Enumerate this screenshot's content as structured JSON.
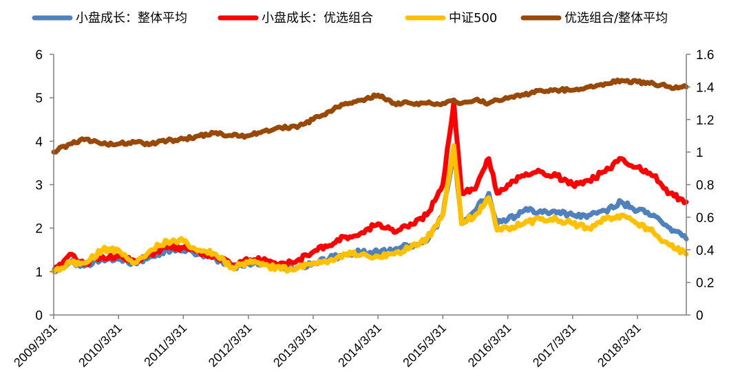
{
  "chart_data": {
    "type": "line",
    "title": "",
    "legend_position": "top",
    "grid": false,
    "y_left": {
      "min": 0,
      "max": 6,
      "ticks": [
        "0",
        "1",
        "2",
        "3",
        "4",
        "5",
        "6"
      ]
    },
    "y_right": {
      "min": 0,
      "max": 1.6,
      "ticks": [
        "0",
        "0.2",
        "0.4",
        "0.6",
        "0.8",
        "1",
        "1.2",
        "1.4",
        "1.6"
      ]
    },
    "x_range": [
      "2009-03-31",
      "2018-12-31"
    ],
    "x_ticks": [
      "2009/3/31",
      "2010/3/31",
      "2011/3/31",
      "2012/3/31",
      "2013/3/31",
      "2014/3/31",
      "2015/3/31",
      "2016/3/31",
      "2017/3/31",
      "2018/3/31"
    ],
    "series": [
      {
        "name": "小盘成长：整体平均",
        "axis": "left",
        "color": "#4f81bd",
        "points": [
          [
            "2009-03-31",
            1.0
          ],
          [
            "2009-06-30",
            1.2
          ],
          [
            "2009-09-30",
            1.15
          ],
          [
            "2009-12-31",
            1.3
          ],
          [
            "2010-03-31",
            1.28
          ],
          [
            "2010-06-30",
            1.2
          ],
          [
            "2010-09-30",
            1.35
          ],
          [
            "2010-12-31",
            1.5
          ],
          [
            "2011-03-31",
            1.48
          ],
          [
            "2011-06-30",
            1.4
          ],
          [
            "2011-09-30",
            1.3
          ],
          [
            "2011-12-31",
            1.1
          ],
          [
            "2012-03-31",
            1.18
          ],
          [
            "2012-06-30",
            1.2
          ],
          [
            "2012-09-30",
            1.1
          ],
          [
            "2012-12-31",
            1.08
          ],
          [
            "2013-03-31",
            1.2
          ],
          [
            "2013-06-30",
            1.3
          ],
          [
            "2013-09-30",
            1.4
          ],
          [
            "2013-12-31",
            1.45
          ],
          [
            "2014-03-31",
            1.45
          ],
          [
            "2014-06-30",
            1.5
          ],
          [
            "2014-09-30",
            1.6
          ],
          [
            "2014-12-31",
            1.7
          ],
          [
            "2015-03-31",
            2.3
          ],
          [
            "2015-06-01",
            3.8
          ],
          [
            "2015-07-15",
            2.1
          ],
          [
            "2015-09-30",
            2.4
          ],
          [
            "2015-12-15",
            2.8
          ],
          [
            "2016-01-31",
            2.1
          ],
          [
            "2016-03-31",
            2.2
          ],
          [
            "2016-06-30",
            2.4
          ],
          [
            "2016-09-30",
            2.4
          ],
          [
            "2016-12-31",
            2.35
          ],
          [
            "2017-03-31",
            2.3
          ],
          [
            "2017-06-30",
            2.3
          ],
          [
            "2017-09-30",
            2.4
          ],
          [
            "2017-12-31",
            2.6
          ],
          [
            "2018-03-31",
            2.4
          ],
          [
            "2018-06-30",
            2.3
          ],
          [
            "2018-09-30",
            2.0
          ],
          [
            "2018-12-31",
            1.75
          ]
        ]
      },
      {
        "name": "小盘成长：优选组合",
        "axis": "left",
        "color": "#ff0000",
        "points": [
          [
            "2009-03-31",
            1.0
          ],
          [
            "2009-06-30",
            1.4
          ],
          [
            "2009-09-30",
            1.2
          ],
          [
            "2009-12-31",
            1.35
          ],
          [
            "2010-03-31",
            1.35
          ],
          [
            "2010-06-30",
            1.25
          ],
          [
            "2010-09-30",
            1.4
          ],
          [
            "2010-12-31",
            1.55
          ],
          [
            "2011-03-31",
            1.55
          ],
          [
            "2011-06-30",
            1.45
          ],
          [
            "2011-09-30",
            1.35
          ],
          [
            "2011-12-31",
            1.15
          ],
          [
            "2012-03-31",
            1.25
          ],
          [
            "2012-06-30",
            1.3
          ],
          [
            "2012-09-30",
            1.2
          ],
          [
            "2012-12-31",
            1.25
          ],
          [
            "2013-03-31",
            1.45
          ],
          [
            "2013-06-30",
            1.6
          ],
          [
            "2013-09-30",
            1.8
          ],
          [
            "2013-12-31",
            1.9
          ],
          [
            "2014-03-31",
            2.1
          ],
          [
            "2014-06-30",
            1.9
          ],
          [
            "2014-09-30",
            2.1
          ],
          [
            "2014-12-31",
            2.3
          ],
          [
            "2015-03-31",
            3.0
          ],
          [
            "2015-06-01",
            4.9
          ],
          [
            "2015-07-15",
            2.8
          ],
          [
            "2015-09-30",
            2.9
          ],
          [
            "2015-12-15",
            3.6
          ],
          [
            "2016-01-31",
            2.8
          ],
          [
            "2016-03-31",
            3.0
          ],
          [
            "2016-06-30",
            3.2
          ],
          [
            "2016-09-30",
            3.3
          ],
          [
            "2016-12-31",
            3.2
          ],
          [
            "2017-03-31",
            3.0
          ],
          [
            "2017-06-30",
            3.1
          ],
          [
            "2017-09-30",
            3.3
          ],
          [
            "2017-12-31",
            3.6
          ],
          [
            "2018-03-31",
            3.4
          ],
          [
            "2018-06-30",
            3.2
          ],
          [
            "2018-09-30",
            2.8
          ],
          [
            "2018-12-31",
            2.6
          ]
        ]
      },
      {
        "name": "中证500",
        "axis": "left",
        "color": "#ffc000",
        "points": [
          [
            "2009-03-31",
            1.0
          ],
          [
            "2009-06-30",
            1.2
          ],
          [
            "2009-09-30",
            1.2
          ],
          [
            "2009-12-31",
            1.5
          ],
          [
            "2010-03-31",
            1.5
          ],
          [
            "2010-06-30",
            1.2
          ],
          [
            "2010-09-30",
            1.5
          ],
          [
            "2010-12-31",
            1.7
          ],
          [
            "2011-03-31",
            1.7
          ],
          [
            "2011-06-30",
            1.5
          ],
          [
            "2011-09-30",
            1.4
          ],
          [
            "2011-12-31",
            1.1
          ],
          [
            "2012-03-31",
            1.2
          ],
          [
            "2012-06-30",
            1.15
          ],
          [
            "2012-09-30",
            1.05
          ],
          [
            "2012-12-31",
            1.1
          ],
          [
            "2013-03-31",
            1.2
          ],
          [
            "2013-06-30",
            1.25
          ],
          [
            "2013-09-30",
            1.4
          ],
          [
            "2013-12-31",
            1.4
          ],
          [
            "2014-03-31",
            1.35
          ],
          [
            "2014-06-30",
            1.4
          ],
          [
            "2014-09-30",
            1.55
          ],
          [
            "2014-12-31",
            1.75
          ],
          [
            "2015-03-31",
            2.3
          ],
          [
            "2015-06-01",
            3.9
          ],
          [
            "2015-07-15",
            2.1
          ],
          [
            "2015-09-30",
            2.3
          ],
          [
            "2015-12-15",
            2.7
          ],
          [
            "2016-01-31",
            1.95
          ],
          [
            "2016-03-31",
            2.0
          ],
          [
            "2016-06-30",
            2.1
          ],
          [
            "2016-09-30",
            2.2
          ],
          [
            "2016-12-31",
            2.2
          ],
          [
            "2017-03-31",
            2.1
          ],
          [
            "2017-06-30",
            2.0
          ],
          [
            "2017-09-30",
            2.2
          ],
          [
            "2017-12-31",
            2.3
          ],
          [
            "2018-03-31",
            2.1
          ],
          [
            "2018-06-30",
            1.9
          ],
          [
            "2018-09-30",
            1.6
          ],
          [
            "2018-12-31",
            1.4
          ]
        ]
      },
      {
        "name": "优选组合/整体平均",
        "axis": "right",
        "color": "#984807",
        "points": [
          [
            "2009-03-31",
            1.0
          ],
          [
            "2009-06-30",
            1.05
          ],
          [
            "2009-09-30",
            1.08
          ],
          [
            "2009-12-31",
            1.05
          ],
          [
            "2010-03-31",
            1.05
          ],
          [
            "2010-06-30",
            1.06
          ],
          [
            "2010-09-30",
            1.05
          ],
          [
            "2010-12-31",
            1.07
          ],
          [
            "2011-03-31",
            1.08
          ],
          [
            "2011-06-30",
            1.1
          ],
          [
            "2011-09-30",
            1.12
          ],
          [
            "2011-12-31",
            1.1
          ],
          [
            "2012-03-31",
            1.1
          ],
          [
            "2012-06-30",
            1.13
          ],
          [
            "2012-09-30",
            1.15
          ],
          [
            "2012-12-31",
            1.15
          ],
          [
            "2013-03-31",
            1.2
          ],
          [
            "2013-06-30",
            1.25
          ],
          [
            "2013-09-30",
            1.3
          ],
          [
            "2013-12-31",
            1.32
          ],
          [
            "2014-03-31",
            1.35
          ],
          [
            "2014-06-30",
            1.3
          ],
          [
            "2014-09-30",
            1.3
          ],
          [
            "2014-12-31",
            1.3
          ],
          [
            "2015-03-31",
            1.3
          ],
          [
            "2015-06-01",
            1.32
          ],
          [
            "2015-07-15",
            1.3
          ],
          [
            "2015-09-30",
            1.32
          ],
          [
            "2015-12-15",
            1.3
          ],
          [
            "2016-01-31",
            1.32
          ],
          [
            "2016-03-31",
            1.33
          ],
          [
            "2016-06-30",
            1.35
          ],
          [
            "2016-09-30",
            1.38
          ],
          [
            "2016-12-31",
            1.38
          ],
          [
            "2017-03-31",
            1.38
          ],
          [
            "2017-06-30",
            1.4
          ],
          [
            "2017-09-30",
            1.42
          ],
          [
            "2017-12-31",
            1.44
          ],
          [
            "2018-03-31",
            1.43
          ],
          [
            "2018-06-30",
            1.42
          ],
          [
            "2018-09-30",
            1.4
          ],
          [
            "2018-12-31",
            1.4
          ]
        ]
      }
    ]
  }
}
